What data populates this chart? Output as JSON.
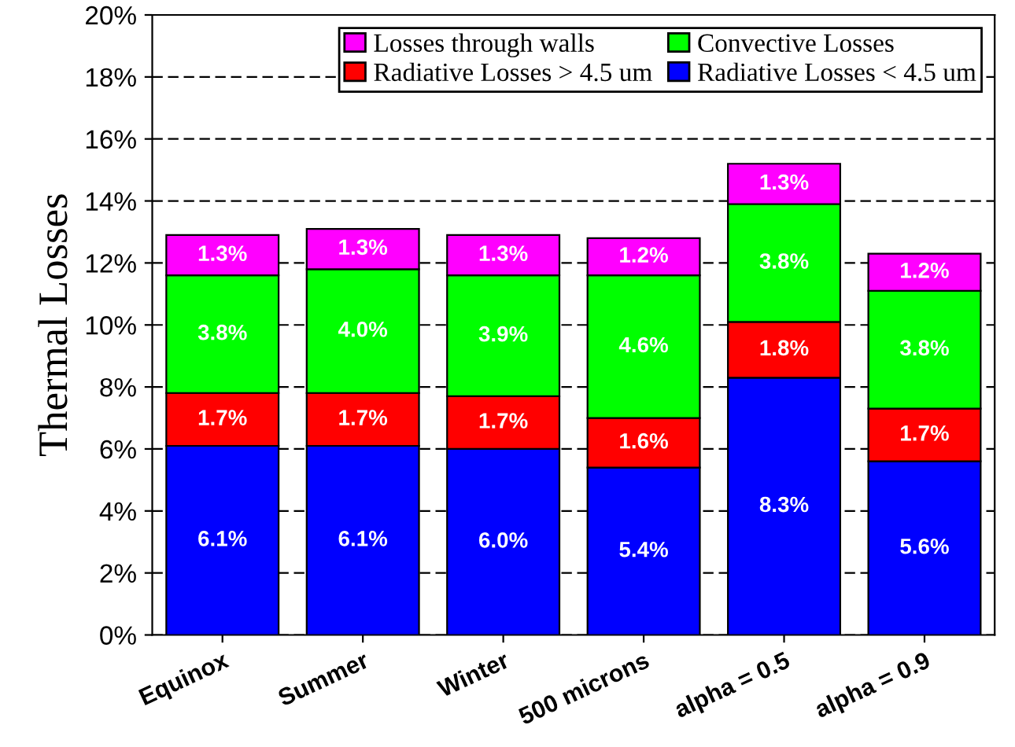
{
  "chart_data": {
    "type": "bar",
    "stacked": true,
    "ylabel": "Thermal Losses",
    "categories": [
      "Equinox",
      "Summer",
      "Winter",
      "500 microns",
      "alpha = 0.5",
      "alpha = 0.9"
    ],
    "series": [
      {
        "name": "Radiative Losses < 4.5 um",
        "color": "#0000ff",
        "values": [
          6.1,
          6.1,
          6.0,
          5.4,
          8.3,
          5.6
        ],
        "value_labels": [
          "6.1%",
          "6.1%",
          "6.0%",
          "5.4%",
          "8.3%",
          "5.6%"
        ]
      },
      {
        "name": "Radiative Losses > 4.5 um",
        "color": "#ff0000",
        "values": [
          1.7,
          1.7,
          1.7,
          1.6,
          1.8,
          1.7
        ],
        "value_labels": [
          "1.7%",
          "1.7%",
          "1.7%",
          "1.6%",
          "1.8%",
          "1.7%"
        ]
      },
      {
        "name": "Convective Losses",
        "color": "#00ff00",
        "values": [
          3.8,
          4.0,
          3.9,
          4.6,
          3.8,
          3.8
        ],
        "value_labels": [
          "3.8%",
          "4.0%",
          "3.9%",
          "4.6%",
          "3.8%",
          "3.8%"
        ]
      },
      {
        "name": "Losses through walls",
        "color": "#ff00ff",
        "values": [
          1.3,
          1.3,
          1.3,
          1.2,
          1.3,
          1.2
        ],
        "value_labels": [
          "1.3%",
          "1.3%",
          "1.3%",
          "1.2%",
          "1.3%",
          "1.2%"
        ]
      }
    ],
    "ylim": [
      0,
      20
    ],
    "yticks": [
      {
        "value": 0,
        "label": "0%"
      },
      {
        "value": 2,
        "label": "2%"
      },
      {
        "value": 4,
        "label": "4%"
      },
      {
        "value": 6,
        "label": "6%"
      },
      {
        "value": 8,
        "label": "8%"
      },
      {
        "value": 10,
        "label": "10%"
      },
      {
        "value": 12,
        "label": "12%"
      },
      {
        "value": 14,
        "label": "14%"
      },
      {
        "value": 16,
        "label": "16%"
      },
      {
        "value": 18,
        "label": "18%"
      },
      {
        "value": 20,
        "label": "20%"
      }
    ],
    "grid": "y",
    "legend": "top right"
  }
}
